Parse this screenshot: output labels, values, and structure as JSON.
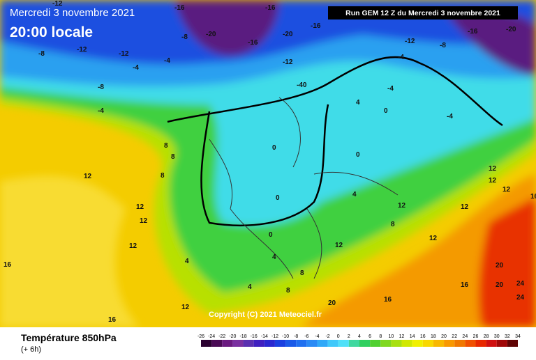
{
  "header": {
    "date": "Mercredi 3 novembre 2021",
    "time": "20:00 locale",
    "run": "Run GEM 12 Z du Mercredi 3 novembre 2021"
  },
  "copyright": "Copyright (C) 2021 Meteociel.fr",
  "legend": {
    "title": "Température 850hPa",
    "subtitle": "(+ 6h)",
    "ticks": [
      -26,
      -24,
      -22,
      -20,
      -18,
      -16,
      -14,
      -12,
      -10,
      -8,
      -6,
      -4,
      -2,
      0,
      2,
      4,
      6,
      8,
      10,
      12,
      14,
      16,
      18,
      20,
      22,
      24,
      26,
      28,
      30,
      32,
      34
    ],
    "colors": [
      "#2a0030",
      "#4a0a55",
      "#6a1a80",
      "#7a30a0",
      "#5a30b0",
      "#4020c0",
      "#2a28d0",
      "#1a40e0",
      "#1a5ae8",
      "#2070f0",
      "#2a8af5",
      "#30a8f8",
      "#40c8fa",
      "#50e0f8",
      "#40d8a0",
      "#30d060",
      "#50d030",
      "#80d820",
      "#a8e010",
      "#d0e800",
      "#f0f000",
      "#f8d800",
      "#f8b800",
      "#f89800",
      "#f07800",
      "#f05000",
      "#e82800",
      "#d01010",
      "#a00808",
      "#600404"
    ]
  },
  "contour_labels": [
    -12,
    -16,
    -20,
    -16,
    -12,
    -8,
    -12,
    -8,
    -4,
    -8,
    -4,
    -16,
    -20,
    -16,
    -12,
    -4,
    -40,
    -4,
    0,
    -4,
    -8,
    -12,
    -16,
    -20,
    0,
    0,
    -4,
    4,
    4,
    0,
    0,
    8,
    8,
    8,
    12,
    12,
    12,
    12,
    12,
    12,
    16,
    16,
    12,
    4,
    4,
    8,
    8,
    12,
    12,
    16,
    16,
    20,
    20,
    20,
    24,
    24,
    4,
    8,
    12,
    12,
    12,
    16
  ]
}
